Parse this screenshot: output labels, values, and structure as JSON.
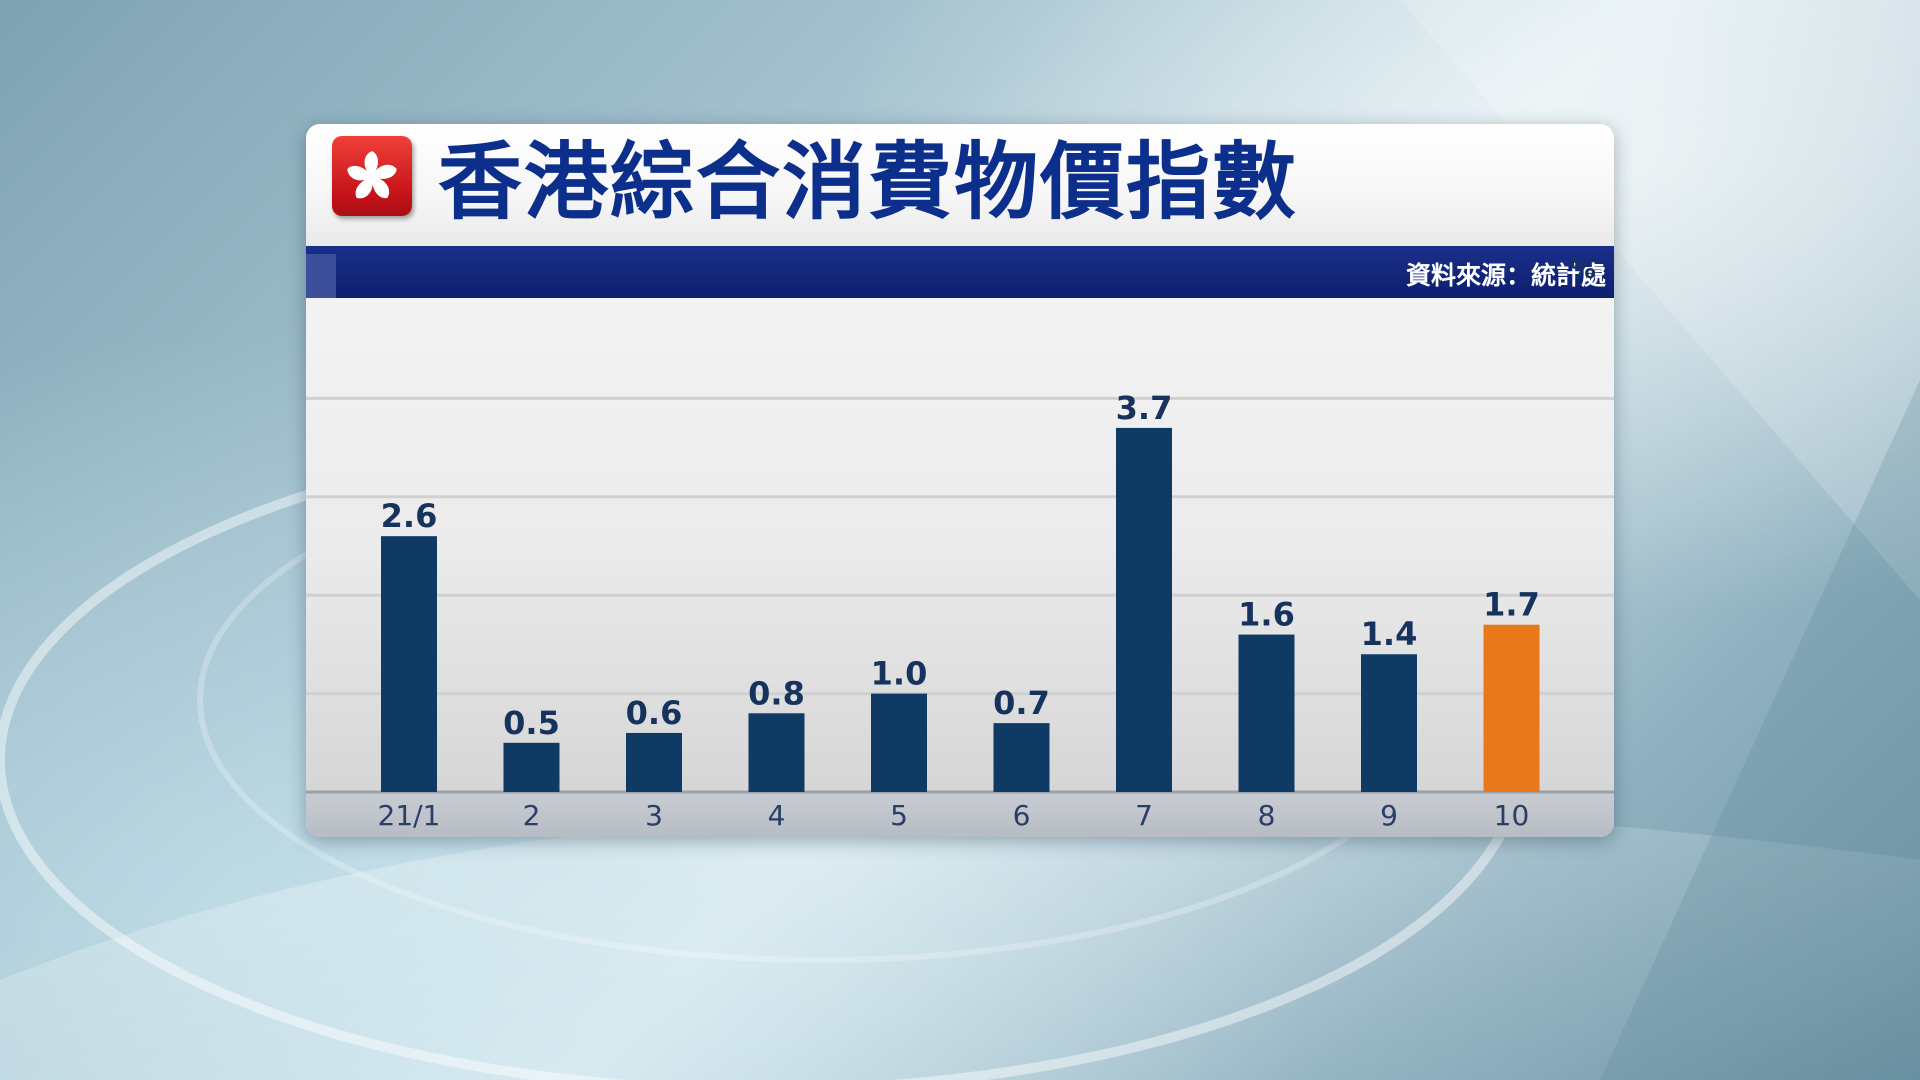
{
  "header": {
    "title": "香港綜合消費物價指數",
    "source": "資料來源：統計處",
    "flag_icon": "hong-kong-flag-icon"
  },
  "colors": {
    "title": "#0d2f8c",
    "source_bar": "#0d1f6e",
    "bar": "#0f3a64",
    "highlight_bar": "#e8791a",
    "label": "#16335e",
    "flag_red": "#d21d24"
  },
  "chart_data": {
    "type": "bar",
    "title": "香港綜合消費物價指數",
    "ylabel": "%",
    "xlabel": "",
    "categories": [
      "21/1",
      "2",
      "3",
      "4",
      "5",
      "6",
      "7",
      "8",
      "9",
      "10"
    ],
    "values": [
      2.6,
      0.5,
      0.6,
      0.8,
      1.0,
      0.7,
      3.7,
      1.6,
      1.4,
      1.7
    ],
    "value_labels": [
      "2.6",
      "0.5",
      "0.6",
      "0.8",
      "1.0",
      "0.7",
      "3.7",
      "1.6",
      "1.4",
      "1.7"
    ],
    "highlight_index": 9,
    "ylim": [
      0,
      4
    ],
    "grid": true,
    "legend": "none",
    "source": "資料來源：統計處"
  }
}
